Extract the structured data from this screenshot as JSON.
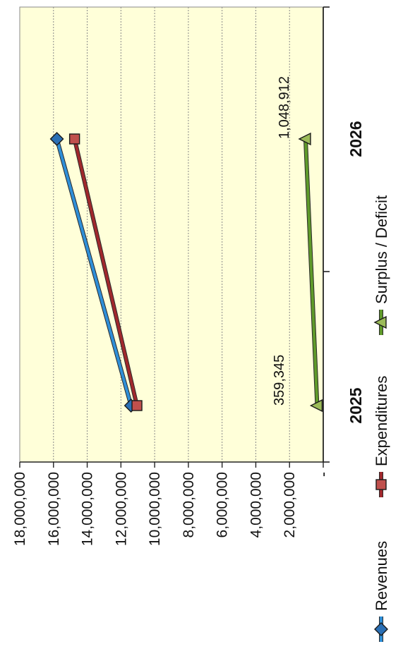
{
  "chart_data": {
    "type": "line",
    "categories": [
      "2025",
      "2026"
    ],
    "series": [
      {
        "name": "Revenues",
        "values": [
          11400000,
          15800000
        ],
        "color": "#2f8fd8",
        "marker": "diamond",
        "marker_color": "#2a6fb5"
      },
      {
        "name": "Expenditures",
        "values": [
          11050000,
          14750000
        ],
        "color": "#a0282c",
        "marker": "square",
        "marker_color": "#c0504d"
      },
      {
        "name": "Surplus / Deficit",
        "values": [
          359345,
          1048912
        ],
        "color": "#5f9a2a",
        "marker": "triangle",
        "marker_color": "#9bbb59"
      }
    ],
    "data_labels": [
      {
        "series": "Surplus / Deficit",
        "category": "2025",
        "text": "359,345"
      },
      {
        "series": "Surplus / Deficit",
        "category": "2026",
        "text": "1,048,912"
      }
    ],
    "y_ticks": [
      {
        "value": 0,
        "label": "-"
      },
      {
        "value": 2000000,
        "label": "2,000,000"
      },
      {
        "value": 4000000,
        "label": "4,000,000"
      },
      {
        "value": 6000000,
        "label": "6,000,000"
      },
      {
        "value": 8000000,
        "label": "8,000,000"
      },
      {
        "value": 10000000,
        "label": "10,000,000"
      },
      {
        "value": 12000000,
        "label": "12,000,000"
      },
      {
        "value": 14000000,
        "label": "14,000,000"
      },
      {
        "value": 16000000,
        "label": "16,000,000"
      },
      {
        "value": 18000000,
        "label": "18,000,000"
      }
    ],
    "ylim": [
      0,
      18000000
    ],
    "grid": true,
    "legend_position": "bottom",
    "orientation": "rotated 90 degrees counter-clockwise",
    "plot_background": "#ffffd9"
  }
}
